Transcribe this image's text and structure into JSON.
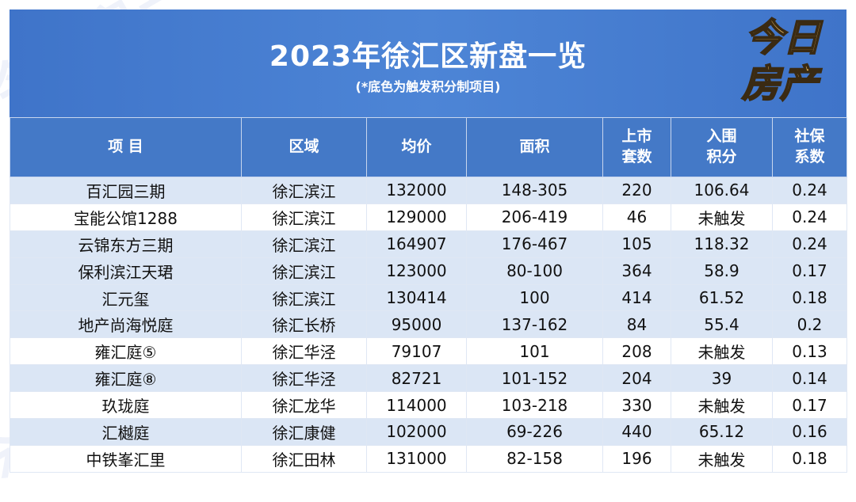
{
  "header": {
    "title": "2023年徐汇区新盘一览",
    "subtitle": "(*底色为触发积分制项目)",
    "logo_line1": "今日",
    "logo_line2": "房产"
  },
  "watermark_text": "今日房产",
  "table": {
    "columns": [
      "项 目",
      "区域",
      "均价",
      "面积",
      "上市\n套数",
      "入围\n积分",
      "社保\n系数"
    ],
    "rows": [
      {
        "project": "百汇园三期",
        "area": "徐汇滨江",
        "price": "132000",
        "size": "148-305",
        "units": "220",
        "score": "106.64",
        "ratio": "0.24",
        "shaded": true
      },
      {
        "project": "宝能公馆1288",
        "area": "徐汇滨江",
        "price": "129000",
        "size": "206-419",
        "units": "46",
        "score": "未触发",
        "ratio": "0.24",
        "shaded": false
      },
      {
        "project": "云锦东方三期",
        "area": "徐汇滨江",
        "price": "164907",
        "size": "176-467",
        "units": "105",
        "score": "118.32",
        "ratio": "0.24",
        "shaded": true
      },
      {
        "project": "保利滨江天珺",
        "area": "徐汇滨江",
        "price": "123000",
        "size": "80-100",
        "units": "364",
        "score": "58.9",
        "ratio": "0.17",
        "shaded": true
      },
      {
        "project": "汇元玺",
        "area": "徐汇滨江",
        "price": "130414",
        "size": "100",
        "units": "414",
        "score": "61.52",
        "ratio": "0.18",
        "shaded": true
      },
      {
        "project": "地产尚海悦庭",
        "area": "徐汇长桥",
        "price": "95000",
        "size": "137-162",
        "units": "84",
        "score": "55.4",
        "ratio": "0.2",
        "shaded": true
      },
      {
        "project": "雍汇庭⑤",
        "area": "徐汇华泾",
        "price": "79107",
        "size": "101",
        "units": "208",
        "score": "未触发",
        "ratio": "0.13",
        "shaded": false
      },
      {
        "project": "雍汇庭⑧",
        "area": "徐汇华泾",
        "price": "82721",
        "size": "101-152",
        "units": "204",
        "score": "39",
        "ratio": "0.14",
        "shaded": true
      },
      {
        "project": "玖珑庭",
        "area": "徐汇龙华",
        "price": "114000",
        "size": "103-218",
        "units": "330",
        "score": "未触发",
        "ratio": "0.17",
        "shaded": false
      },
      {
        "project": "汇樾庭",
        "area": "徐汇康健",
        "price": "102000",
        "size": "69-226",
        "units": "440",
        "score": "65.12",
        "ratio": "0.16",
        "shaded": true
      },
      {
        "project": "中铁峯汇里",
        "area": "徐汇田林",
        "price": "131000",
        "size": "82-158",
        "units": "196",
        "score": "未触发",
        "ratio": "0.18",
        "shaded": false
      }
    ]
  },
  "colors": {
    "header_blue": "#4479c7",
    "shade": "#dbe6f5",
    "logo_gold": "#e7b95e"
  }
}
